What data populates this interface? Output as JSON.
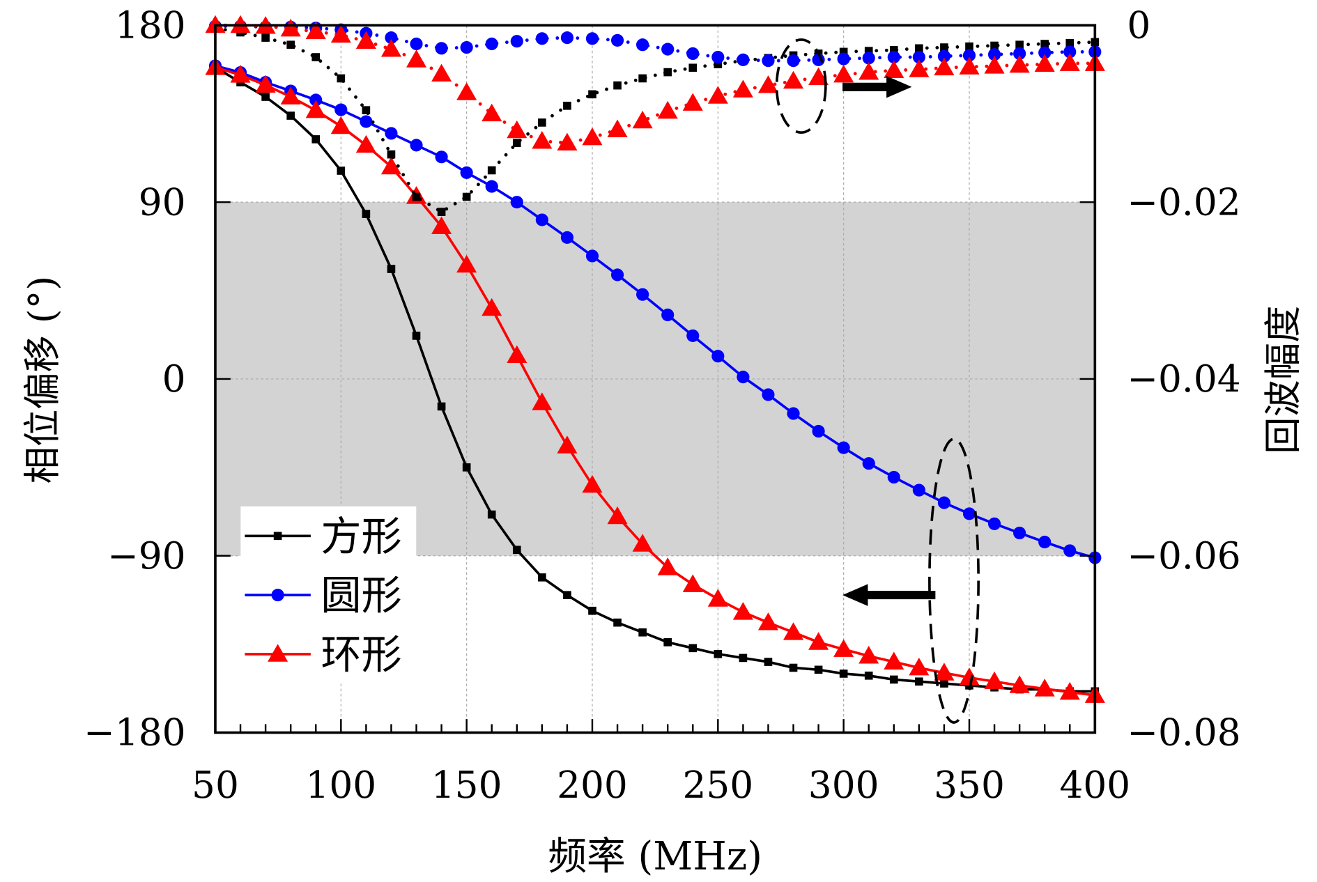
{
  "chart_data": {
    "type": "line",
    "title": "",
    "xlabel": "频率 (MHz)",
    "ylabel_left": "相位偏移 (°)",
    "ylabel_right": "回波幅度",
    "xlim": [
      50,
      400
    ],
    "ylim_left": [
      -180,
      180
    ],
    "ylim_right": [
      -0.08,
      0
    ],
    "x_ticks": [
      "50",
      "100",
      "150",
      "200",
      "250",
      "300",
      "350",
      "400"
    ],
    "y_ticks_left": [
      "180",
      "90",
      "0",
      "−90",
      "−180"
    ],
    "y_ticks_right": [
      "0",
      "−0.02",
      "−0.04",
      "−0.06",
      "−0.08"
    ],
    "grid": "dotted vertical and horizontal",
    "shaded_band_left": [
      -90,
      90
    ],
    "legend_placement": "lower-left",
    "x": [
      50,
      60,
      70,
      80,
      90,
      100,
      110,
      120,
      130,
      140,
      150,
      160,
      170,
      180,
      190,
      200,
      210,
      220,
      230,
      240,
      250,
      260,
      270,
      280,
      290,
      300,
      310,
      320,
      330,
      340,
      350,
      360,
      370,
      380,
      390,
      400
    ],
    "series": [
      {
        "name": "方形",
        "axis": "left",
        "style": "solid",
        "marker": "square",
        "color": "#000000",
        "values": [
          158.6,
          151,
          143.6,
          134,
          122,
          106,
          84,
          56,
          22,
          -14,
          -45,
          -69,
          -87,
          -101,
          -110,
          -118,
          -124,
          -129,
          -134,
          -137,
          -140,
          -142,
          -144,
          -147,
          -148,
          -150,
          -151,
          -153,
          -154,
          -155,
          -156,
          -157,
          -158,
          -158,
          -159,
          -159
        ]
      },
      {
        "name": "圆形",
        "axis": "left",
        "style": "solid",
        "marker": "circle",
        "color": "#0000ff",
        "values": [
          159.4,
          156,
          151,
          146.6,
          142,
          137,
          131,
          125,
          119,
          113,
          105,
          98,
          90,
          81,
          72,
          62.6,
          53,
          43,
          32.6,
          22,
          11.6,
          1,
          -8,
          -17.6,
          -26.6,
          -35,
          -43,
          -50,
          -56.6,
          -63,
          -68.6,
          -73.7,
          -78.4,
          -83,
          -87.4,
          -91
        ]
      },
      {
        "name": "环形",
        "axis": "left",
        "style": "solid",
        "marker": "triangle",
        "color": "#ff0000",
        "values": [
          158.6,
          154.7,
          149.6,
          143.6,
          136.7,
          128.6,
          119,
          108,
          93,
          77.6,
          58,
          36,
          12,
          -12,
          -34,
          -54,
          -70,
          -84,
          -96,
          -104.6,
          -112,
          -118.7,
          -124,
          -129,
          -134,
          -137.6,
          -141,
          -144,
          -147,
          -149.6,
          -152,
          -154,
          -156,
          -157.7,
          -159.4,
          -161
        ]
      },
      {
        "name": "方形",
        "axis": "right",
        "style": "dotted",
        "marker": "square",
        "color": "#000000",
        "values": [
          -0.0003,
          -0.0008,
          -0.0014,
          -0.0022,
          -0.0036,
          -0.006,
          -0.0096,
          -0.0146,
          -0.0194,
          -0.0211,
          -0.0194,
          -0.0164,
          -0.0133,
          -0.011,
          -0.0091,
          -0.0078,
          -0.0068,
          -0.006,
          -0.0053,
          -0.0048,
          -0.0044,
          -0.004,
          -0.0037,
          -0.0034,
          -0.0032,
          -0.003,
          -0.0029,
          -0.0028,
          -0.0026,
          -0.0025,
          -0.0024,
          -0.0023,
          -0.0022,
          -0.0021,
          -0.002,
          -0.0019
        ]
      },
      {
        "name": "圆形",
        "axis": "right",
        "style": "dotted",
        "marker": "circle",
        "color": "#0000ff",
        "values": [
          -0.0001,
          -0.0001,
          -0.0002,
          -0.0002,
          -0.0003,
          -0.0005,
          -0.0009,
          -0.0014,
          -0.0021,
          -0.0026,
          -0.0025,
          -0.0021,
          -0.0018,
          -0.0015,
          -0.0014,
          -0.0015,
          -0.0017,
          -0.0022,
          -0.0027,
          -0.0032,
          -0.0036,
          -0.0039,
          -0.004,
          -0.004,
          -0.0039,
          -0.0038,
          -0.0037,
          -0.0036,
          -0.0036,
          -0.0035,
          -0.0034,
          -0.0033,
          -0.0032,
          -0.0031,
          -0.003,
          -0.003
        ]
      },
      {
        "name": "环形",
        "axis": "right",
        "style": "dotted",
        "marker": "triangle",
        "color": "#ff0000",
        "values": [
          0,
          0,
          -0.0001,
          -0.0004,
          -0.0007,
          -0.0011,
          -0.0018,
          -0.0027,
          -0.0039,
          -0.0055,
          -0.0076,
          -0.01,
          -0.0119,
          -0.0131,
          -0.0133,
          -0.0127,
          -0.0118,
          -0.0108,
          -0.0097,
          -0.0088,
          -0.008,
          -0.0073,
          -0.0068,
          -0.0063,
          -0.0059,
          -0.0056,
          -0.0053,
          -0.0051,
          -0.005,
          -0.0048,
          -0.0047,
          -0.0046,
          -0.0045,
          -0.0044,
          -0.0043,
          -0.0043
        ]
      }
    ],
    "legend": [
      "方形",
      "圆形",
      "环形"
    ],
    "annotations": [
      "dashed ellipse at ~285 MHz around return curves with right-pointing arrow",
      "dashed ellipse at ~345 MHz around phase curves with left-pointing arrow"
    ]
  }
}
